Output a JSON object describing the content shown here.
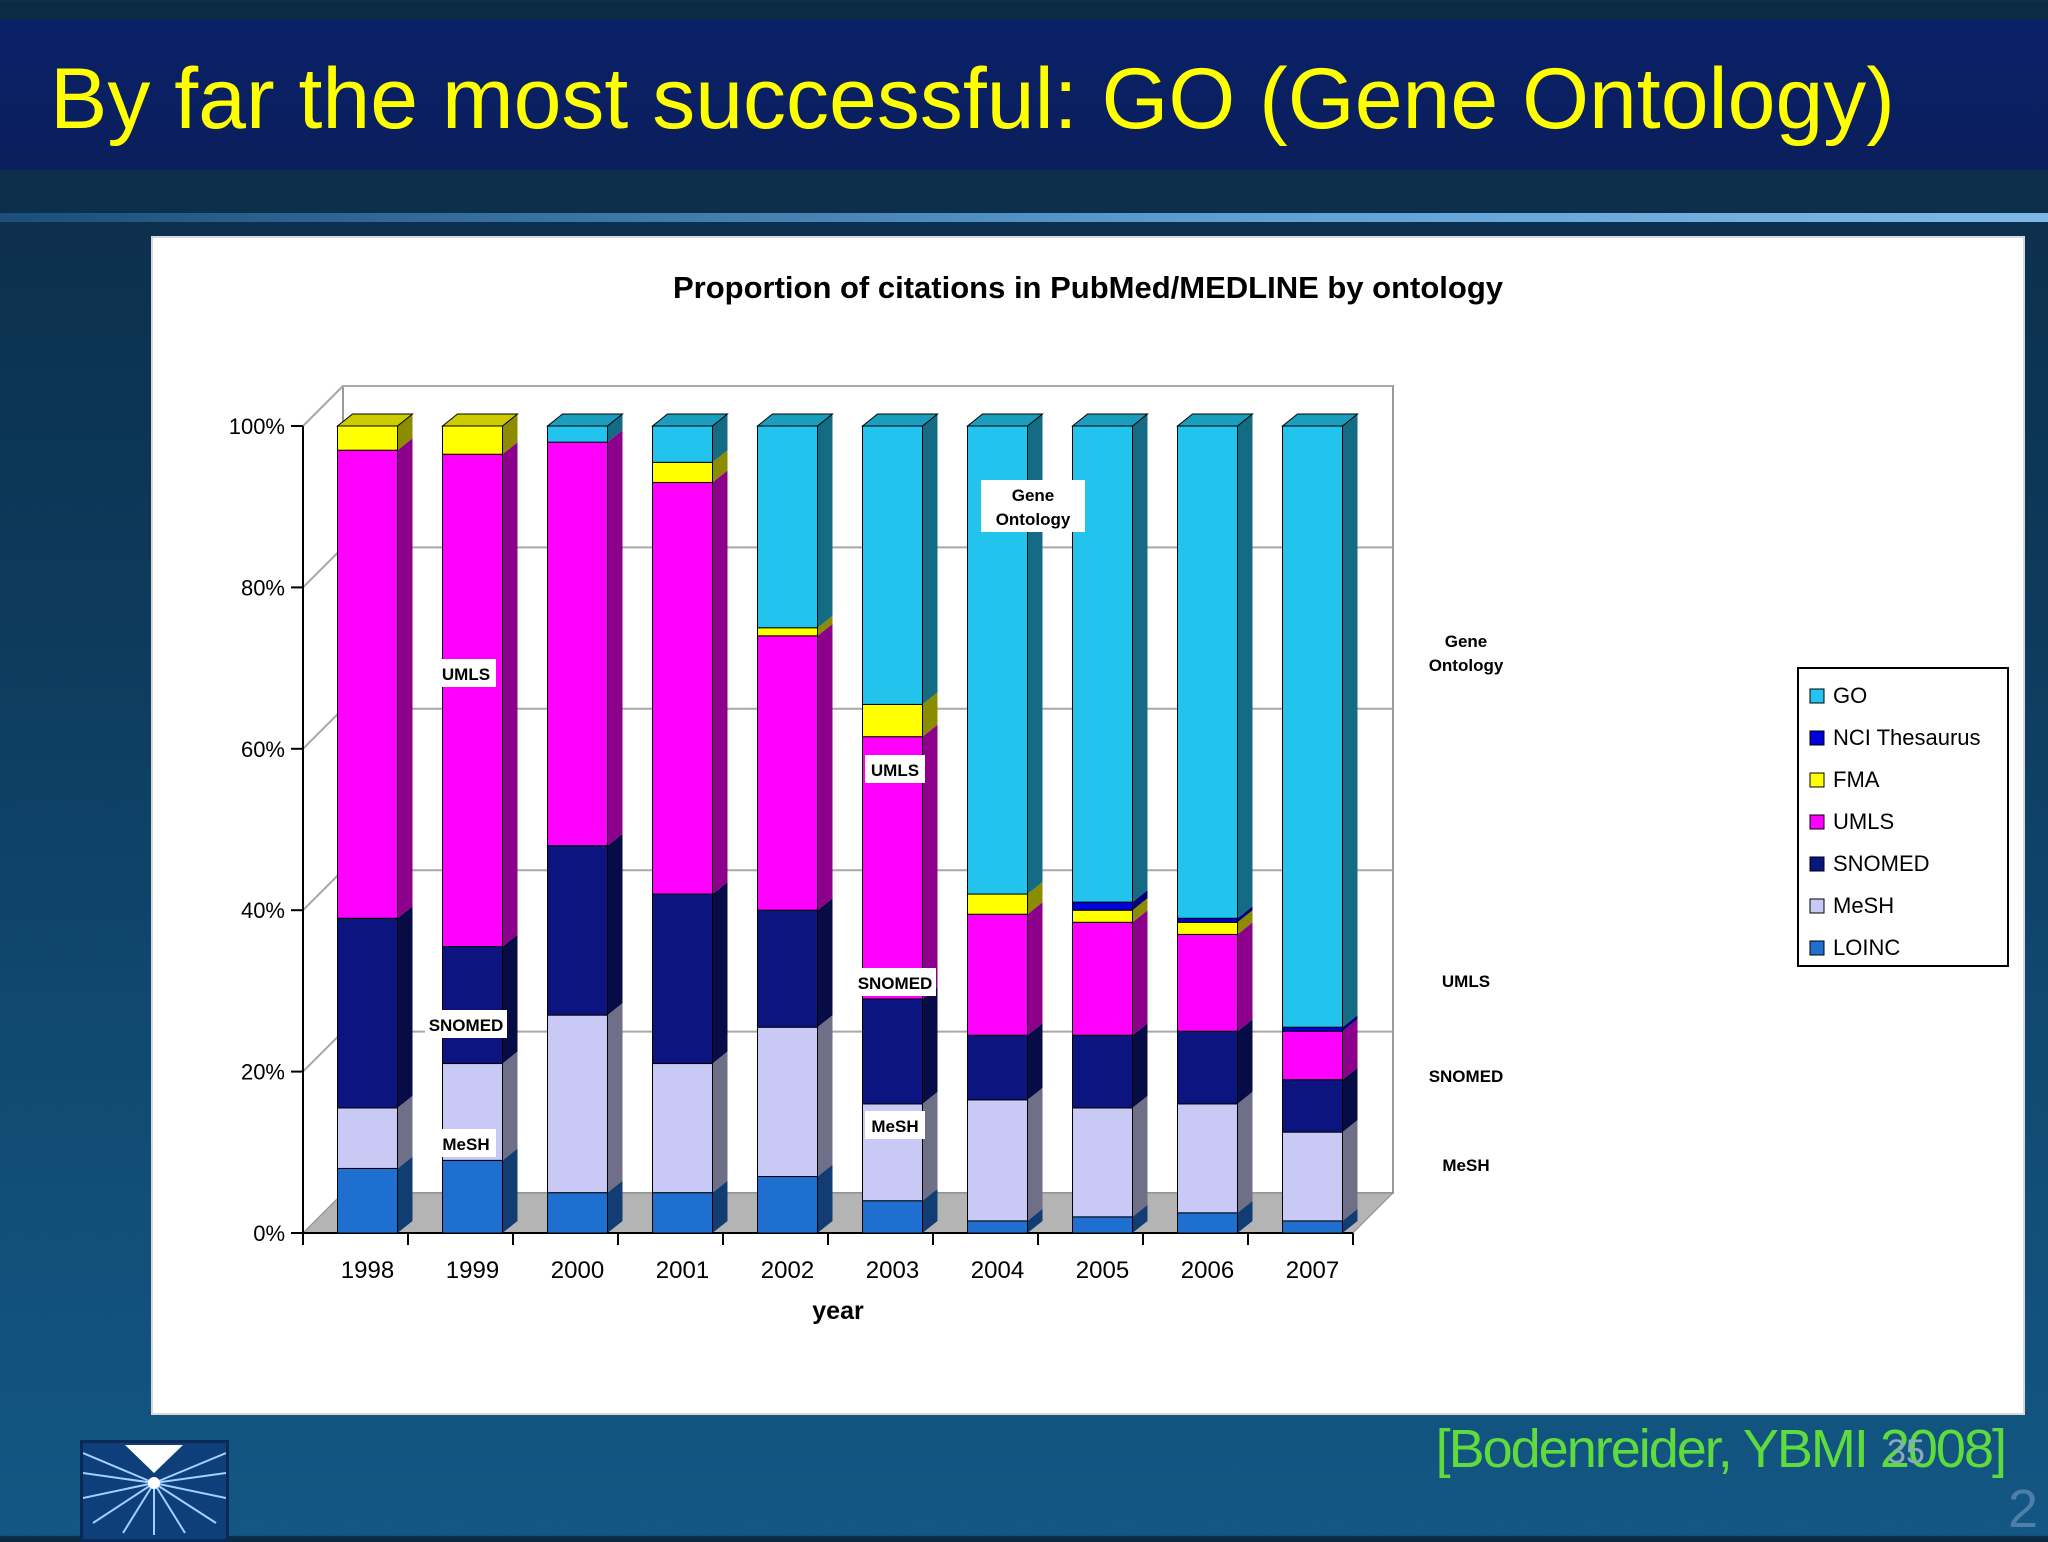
{
  "slide": {
    "title": "By far the most successful: GO (Gene Ontology)",
    "citation": "[Bodenreider, YBMI 2008]",
    "slide_number": "35",
    "corner_number": "2"
  },
  "chart_data": {
    "type": "bar",
    "stacked": true,
    "title": "Proportion of citations in PubMed/MEDLINE by ontology",
    "xlabel": "year",
    "ylabel": "",
    "ylim": [
      0,
      100
    ],
    "y_ticks": [
      "0%",
      "20%",
      "40%",
      "60%",
      "80%",
      "100%"
    ],
    "categories": [
      "1998",
      "1999",
      "2000",
      "2001",
      "2002",
      "2003",
      "2004",
      "2005",
      "2006",
      "2007"
    ],
    "legend_position": "right",
    "series": [
      {
        "name": "LOINC",
        "color": "#1f6fd1",
        "values": [
          8,
          9,
          5,
          5,
          7,
          4,
          1.5,
          2,
          2.5,
          1.5
        ]
      },
      {
        "name": "MeSH",
        "color": "#c9c9f5",
        "values": [
          7.5,
          12,
          22,
          16,
          18.5,
          12,
          15,
          13.5,
          13.5,
          11
        ]
      },
      {
        "name": "SNOMED",
        "color": "#0c1480",
        "values": [
          23.5,
          14.5,
          21,
          21,
          14.5,
          13,
          8,
          9,
          9,
          6.5
        ]
      },
      {
        "name": "UMLS",
        "color": "#ff00ff",
        "values": [
          58,
          61,
          50,
          51,
          34,
          32.5,
          15,
          14,
          12,
          6
        ]
      },
      {
        "name": "FMA",
        "color": "#ffff00",
        "values": [
          3,
          3.5,
          0,
          2.5,
          1,
          4,
          2.5,
          1.5,
          1.5,
          0
        ]
      },
      {
        "name": "NCI Thesaurus",
        "color": "#0000dd",
        "values": [
          0,
          0,
          0,
          0,
          0,
          0,
          0,
          1,
          0.5,
          0.5
        ]
      },
      {
        "name": "GO",
        "color": "#22c4ee",
        "values": [
          0,
          0,
          2,
          4.5,
          25,
          34.5,
          58,
          59,
          61,
          74.5
        ]
      }
    ],
    "annotations": [
      {
        "text": "UMLS",
        "category": "1998"
      },
      {
        "text": "SNOMED",
        "category": "1998"
      },
      {
        "text": "MeSH",
        "category": "1998"
      },
      {
        "text": "UMLS",
        "category": "2001"
      },
      {
        "text": "SNOMED",
        "category": "2001"
      },
      {
        "text": "MeSH",
        "category": "2001"
      },
      {
        "text": "Gene Ontology",
        "category": "2002"
      },
      {
        "text": "Gene Ontology",
        "category": "2005"
      },
      {
        "text": "UMLS",
        "category": "2005"
      },
      {
        "text": "SNOMED",
        "category": "2005"
      },
      {
        "text": "MeSH",
        "category": "2005"
      }
    ]
  }
}
